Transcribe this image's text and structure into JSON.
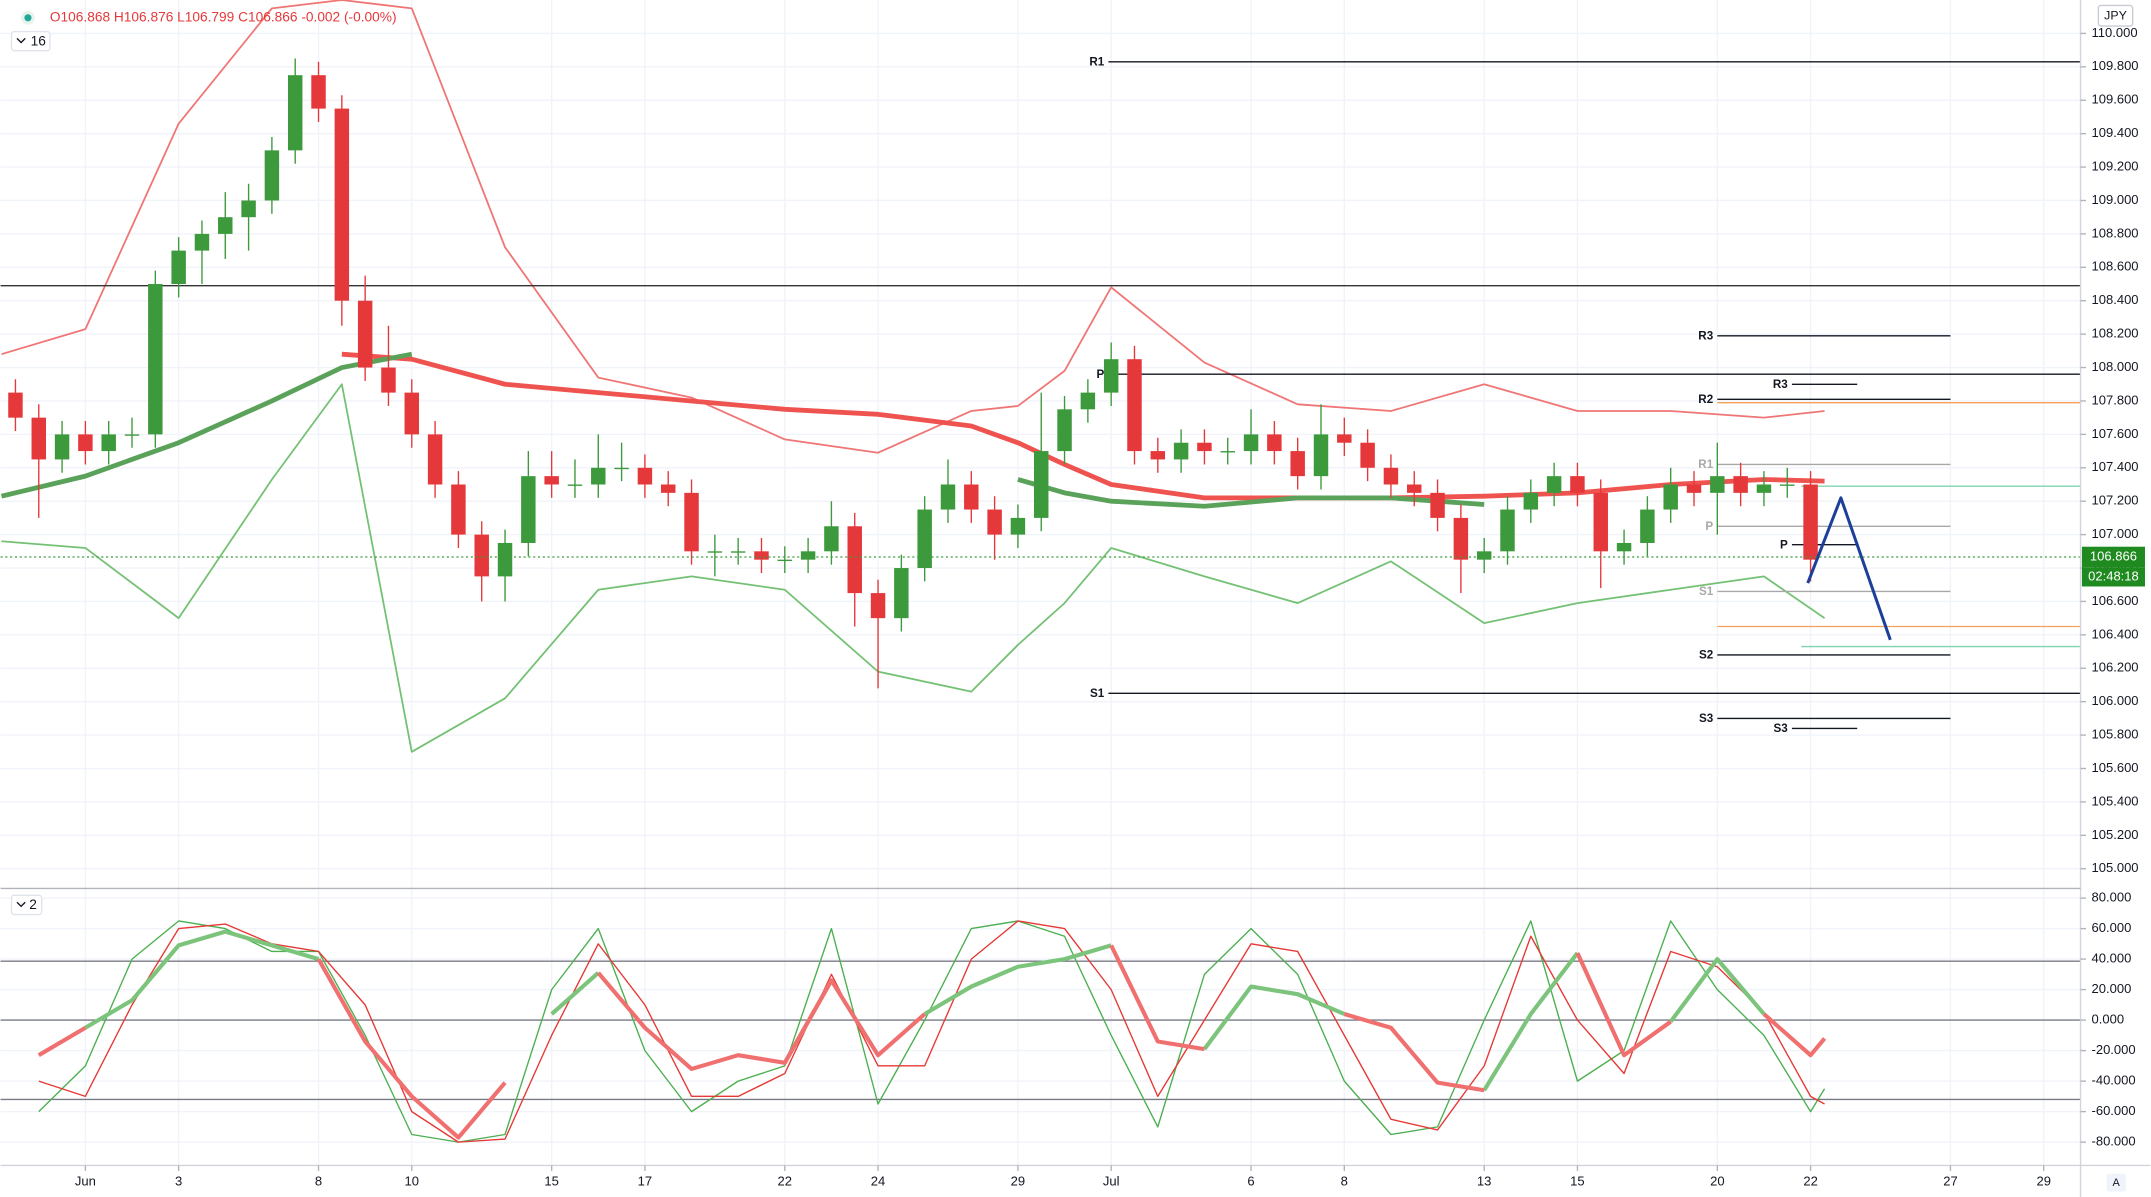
{
  "chart_data": [
    {
      "type": "candlestick",
      "ohlc_label": "O106.868 H106.876 L106.799 C106.866 -0.002 (-0.00%)",
      "indicator_count": 16,
      "currency": "JPY",
      "last_price": 106.866,
      "countdown": "02:48:18",
      "scale_mode": "A",
      "xlim": [
        -1.82,
        42.79
      ],
      "ylim": [
        104.89,
        110.2
      ],
      "grid": true,
      "xticks": [
        {
          "value": 0,
          "label": "Jun"
        },
        {
          "value": 2,
          "label": "3"
        },
        {
          "value": 5,
          "label": "8"
        },
        {
          "value": 7,
          "label": "10"
        },
        {
          "value": 10,
          "label": "15"
        },
        {
          "value": 12,
          "label": "17"
        },
        {
          "value": 15,
          "label": "22"
        },
        {
          "value": 17,
          "label": "24"
        },
        {
          "value": 20,
          "label": "29"
        },
        {
          "value": 22,
          "label": "Jul"
        },
        {
          "value": 25,
          "label": "6"
        },
        {
          "value": 27,
          "label": "8"
        },
        {
          "value": 30,
          "label": "13"
        },
        {
          "value": 32,
          "label": "15"
        },
        {
          "value": 35,
          "label": "20"
        },
        {
          "value": 37,
          "label": "22"
        },
        {
          "value": 40,
          "label": "27"
        },
        {
          "value": 42,
          "label": "29"
        }
      ],
      "yticks": [
        {
          "value": 105,
          "label": "105.000"
        },
        {
          "value": 105.2,
          "label": "105.200"
        },
        {
          "value": 105.4,
          "label": "105.400"
        },
        {
          "value": 105.6,
          "label": "105.600"
        },
        {
          "value": 105.8,
          "label": "105.800"
        },
        {
          "value": 106,
          "label": "106.000"
        },
        {
          "value": 106.2,
          "label": "106.200"
        },
        {
          "value": 106.4,
          "label": "106.400"
        },
        {
          "value": 106.6,
          "label": "106.600"
        },
        {
          "value": 106.8,
          "label": "106.800"
        },
        {
          "value": 107,
          "label": "107.000"
        },
        {
          "value": 107.2,
          "label": "107.200"
        },
        {
          "value": 107.4,
          "label": "107.400"
        },
        {
          "value": 107.6,
          "label": "107.600"
        },
        {
          "value": 107.8,
          "label": "107.800"
        },
        {
          "value": 108,
          "label": "108.000"
        },
        {
          "value": 108.2,
          "label": "108.200"
        },
        {
          "value": 108.4,
          "label": "108.400"
        },
        {
          "value": 108.6,
          "label": "108.600"
        },
        {
          "value": 108.8,
          "label": "108.800"
        },
        {
          "value": 109,
          "label": "109.000"
        },
        {
          "value": 109.2,
          "label": "109.200"
        },
        {
          "value": 109.4,
          "label": "109.400"
        },
        {
          "value": 109.6,
          "label": "109.600"
        },
        {
          "value": 109.8,
          "label": "109.800"
        },
        {
          "value": 110,
          "label": "110.000"
        }
      ],
      "up_color": "#3c9a3c",
      "down_color": "#e5383b",
      "x": [
        -1.5,
        -1,
        -0.5,
        0,
        0.5,
        1,
        1.5,
        2,
        2.5,
        3,
        3.5,
        4,
        4.5,
        5,
        5.5,
        6,
        6.5,
        7,
        7.5,
        8,
        8.5,
        9,
        9.5,
        10,
        10.5,
        11,
        11.5,
        12,
        12.5,
        13,
        13.5,
        14,
        14.5,
        15,
        15.5,
        16,
        16.5,
        17,
        17.5,
        18,
        18.5,
        19,
        19.5,
        20,
        20.5,
        21,
        21.5,
        22,
        22.5,
        23,
        23.5,
        24,
        24.5,
        25,
        25.5,
        26,
        26.5,
        27,
        27.5,
        28,
        28.5,
        29,
        29.5,
        30,
        30.5,
        31,
        31.5,
        32,
        32.5,
        33,
        33.5,
        34,
        34.5,
        35,
        35.5,
        36,
        36.5,
        37
      ],
      "open": [
        107.85,
        107.7,
        107.45,
        107.6,
        107.5,
        107.6,
        107.6,
        108.5,
        108.7,
        108.8,
        108.9,
        109,
        109.3,
        109.75,
        109.55,
        108.4,
        108,
        107.85,
        107.6,
        107.3,
        107,
        106.75,
        106.95,
        107.35,
        107.3,
        107.3,
        107.4,
        107.4,
        107.3,
        107.25,
        106.9,
        106.9,
        106.9,
        106.85,
        106.85,
        106.9,
        107.05,
        106.65,
        106.5,
        106.8,
        107.15,
        107.3,
        107.15,
        107,
        107.1,
        107.5,
        107.75,
        107.85,
        108.05,
        107.5,
        107.45,
        107.55,
        107.5,
        107.5,
        107.6,
        107.5,
        107.35,
        107.6,
        107.55,
        107.4,
        107.3,
        107.25,
        107.1,
        106.85,
        106.9,
        107.15,
        107.25,
        107.35,
        107.25,
        106.9,
        106.95,
        107.15,
        107.3,
        107.25,
        107.35,
        107.25,
        107.3,
        107.3
      ],
      "high": [
        107.93,
        107.78,
        107.68,
        107.68,
        107.68,
        107.7,
        108.58,
        108.78,
        108.88,
        109.05,
        109.1,
        109.38,
        109.85,
        109.83,
        109.63,
        108.55,
        108.25,
        107.93,
        107.68,
        107.38,
        107.08,
        107.03,
        107.5,
        107.5,
        107.45,
        107.6,
        107.55,
        107.48,
        107.38,
        107.33,
        107,
        106.98,
        106.98,
        106.93,
        106.98,
        107.2,
        107.13,
        106.73,
        106.88,
        107.23,
        107.45,
        107.38,
        107.23,
        107.18,
        107.85,
        107.83,
        107.93,
        108.15,
        108.13,
        107.58,
        107.63,
        107.63,
        107.58,
        107.75,
        107.68,
        107.58,
        107.78,
        107.7,
        107.63,
        107.48,
        107.38,
        107.33,
        107.18,
        106.98,
        107.23,
        107.33,
        107.43,
        107.43,
        107.33,
        107.03,
        107.23,
        107.4,
        107.38,
        107.55,
        107.43,
        107.38,
        107.4,
        107.38
      ],
      "low": [
        107.62,
        107.1,
        107.37,
        107.42,
        107.42,
        107.52,
        107.52,
        108.42,
        108.5,
        108.65,
        108.7,
        108.92,
        109.22,
        109.47,
        108.25,
        107.92,
        107.77,
        107.52,
        107.22,
        106.92,
        106.6,
        106.6,
        106.87,
        107.22,
        107.22,
        107.22,
        107.32,
        107.22,
        107.17,
        106.82,
        106.75,
        106.82,
        106.77,
        106.77,
        106.77,
        106.82,
        106.45,
        106.08,
        106.42,
        106.72,
        107.07,
        107.07,
        106.85,
        106.92,
        107.02,
        107.42,
        107.67,
        107.77,
        107.42,
        107.37,
        107.37,
        107.42,
        107.42,
        107.42,
        107.42,
        107.27,
        107.27,
        107.47,
        107.32,
        107.22,
        107.17,
        107.02,
        106.65,
        106.77,
        106.82,
        107.07,
        107.17,
        107.17,
        106.68,
        106.82,
        106.87,
        107.07,
        107.17,
        107,
        107.17,
        107.17,
        107.22,
        106.72
      ],
      "close": [
        107.7,
        107.45,
        107.6,
        107.5,
        107.6,
        107.6,
        108.5,
        108.7,
        108.8,
        108.9,
        109,
        109.3,
        109.75,
        109.55,
        108.4,
        108,
        107.85,
        107.6,
        107.3,
        107,
        106.75,
        106.95,
        107.35,
        107.3,
        107.3,
        107.4,
        107.4,
        107.3,
        107.25,
        106.9,
        106.9,
        106.9,
        106.85,
        106.85,
        106.9,
        107.05,
        106.65,
        106.5,
        106.8,
        107.15,
        107.3,
        107.15,
        107,
        107.1,
        107.5,
        107.75,
        107.85,
        108.05,
        107.5,
        107.45,
        107.55,
        107.5,
        107.5,
        107.6,
        107.5,
        107.35,
        107.6,
        107.55,
        107.4,
        107.3,
        107.25,
        107.1,
        106.85,
        106.9,
        107.15,
        107.25,
        107.35,
        107.25,
        106.9,
        106.95,
        107.15,
        107.3,
        107.25,
        107.35,
        107.25,
        107.3,
        107.3,
        106.85
      ],
      "overlay_x": [
        -1.8,
        0,
        2,
        4,
        5.5,
        7,
        9,
        11,
        13,
        15,
        17,
        19,
        20,
        21,
        22,
        24,
        26,
        28,
        30,
        32,
        34,
        36,
        37.3
      ],
      "overlays": [
        {
          "color": "#f07575",
          "width": 1.3,
          "values": [
            108.08,
            108.23,
            109.46,
            110.15,
            110.2,
            110.15,
            108.72,
            107.94,
            107.82,
            107.57,
            107.49,
            107.74,
            107.77,
            107.98,
            108.48,
            108.03,
            107.78,
            107.74,
            107.9,
            107.74,
            107.74,
            107.7,
            107.74
          ]
        },
        {
          "color": "#74c174",
          "width": 1.3,
          "values": [
            106.96,
            106.92,
            106.5,
            107.33,
            107.9,
            105.7,
            106.02,
            106.67,
            106.75,
            106.67,
            106.18,
            106.06,
            106.34,
            106.59,
            106.92,
            106.75,
            106.59,
            106.84,
            106.47,
            106.59,
            106.67,
            106.75,
            106.5
          ]
        },
        {
          "color": "#ef5350",
          "width": 3.5,
          "values": [
            null,
            null,
            null,
            null,
            108.08,
            108.05,
            107.9,
            107.85,
            107.8,
            107.75,
            107.72,
            107.65,
            107.55,
            107.42,
            107.3,
            107.22,
            107.22,
            107.22,
            107.23,
            107.25,
            107.3,
            107.33,
            107.32
          ]
        },
        {
          "color": "#5aa25a",
          "width": 3.5,
          "values": [
            107.23,
            107.35,
            107.55,
            107.8,
            108,
            108.08,
            null,
            null,
            null,
            null,
            null,
            null,
            107.33,
            107.25,
            107.2,
            107.17,
            107.22,
            107.22,
            107.18,
            null,
            null,
            null,
            null
          ]
        }
      ],
      "hlines": [
        {
          "value": 108.49,
          "x": [
            -1.82,
            42.79
          ],
          "color": "#333333"
        },
        {
          "value": 107.79,
          "x": [
            35,
            42.79
          ],
          "color": "#f5a15a"
        },
        {
          "value": 106.45,
          "x": [
            35,
            42.79
          ],
          "color": "#f5a15a"
        },
        {
          "value": 107.29,
          "x": [
            36.8,
            42.79
          ],
          "color": "#7fd3b0"
        },
        {
          "value": 106.33,
          "x": [
            36.8,
            42.79
          ],
          "color": "#7fd3b0"
        }
      ],
      "pivots": [
        {
          "label": "R1",
          "value": 109.83,
          "x": [
            21.94,
            42.79
          ],
          "color": "#131722"
        },
        {
          "label": "P",
          "value": 107.96,
          "x": [
            21.94,
            42.79
          ],
          "color": "#131722"
        },
        {
          "label": "S1",
          "value": 106.05,
          "x": [
            21.94,
            42.79
          ],
          "color": "#131722"
        },
        {
          "label": "R3",
          "value": 108.19,
          "x": [
            35,
            40
          ],
          "color": "#131722"
        },
        {
          "label": "R2",
          "value": 107.81,
          "x": [
            35,
            40
          ],
          "color": "#131722"
        },
        {
          "label": "R1",
          "value": 107.42,
          "x": [
            35,
            40
          ],
          "color": "#a8a8a8"
        },
        {
          "label": "P",
          "value": 107.05,
          "x": [
            35,
            40
          ],
          "color": "#a8a8a8"
        },
        {
          "label": "S1",
          "value": 106.66,
          "x": [
            35,
            40
          ],
          "color": "#a8a8a8"
        },
        {
          "label": "S2",
          "value": 106.28,
          "x": [
            35,
            40
          ],
          "color": "#131722"
        },
        {
          "label": "S3",
          "value": 105.9,
          "x": [
            35,
            40
          ],
          "color": "#131722"
        },
        {
          "label": "R3",
          "value": 107.9,
          "x": [
            36.6,
            38
          ],
          "color": "#131722"
        },
        {
          "label": "P",
          "value": 106.94,
          "x": [
            36.6,
            38
          ],
          "color": "#131722"
        },
        {
          "label": "S3",
          "value": 105.84,
          "x": [
            36.6,
            38
          ],
          "color": "#131722"
        }
      ],
      "forecast": {
        "color": "#1c3f9a",
        "x": [
          36.94,
          37.65,
          38.71
        ],
        "values": [
          106.71,
          107.22,
          106.37
        ]
      }
    },
    {
      "type": "line",
      "indicator_count": 2,
      "xlim": [
        -1.82,
        42.79
      ],
      "ylim": [
        -95.3,
        86.3
      ],
      "yticks": [
        {
          "value": -80,
          "label": "-80.000"
        },
        {
          "value": -60,
          "label": "-60.000"
        },
        {
          "value": -40,
          "label": "-40.000"
        },
        {
          "value": -20,
          "label": "-20.000"
        },
        {
          "value": 0,
          "label": "0.000"
        },
        {
          "value": 20,
          "label": "20.000"
        },
        {
          "value": 40,
          "label": "40.000"
        },
        {
          "value": 60,
          "label": "60.000"
        },
        {
          "value": 80,
          "label": "80.000"
        }
      ],
      "levels": [
        38.6,
        0,
        -52
      ],
      "x": [
        -1,
        0,
        1,
        2,
        3,
        4,
        5,
        6,
        7,
        8,
        9,
        10,
        11,
        12,
        13,
        14,
        15,
        16,
        17,
        18,
        19,
        20,
        21,
        22,
        23,
        24,
        25,
        26,
        27,
        28,
        29,
        30,
        31,
        32,
        33,
        34,
        35,
        36,
        37,
        37.3
      ],
      "series": [
        {
          "color": "#4caf50",
          "width": 1,
          "values": [
            -60,
            -30,
            40,
            65,
            60,
            45,
            45,
            -10,
            -75,
            -80,
            -75,
            20,
            60,
            -20,
            -60,
            -40,
            -30,
            60,
            -55,
            0,
            60,
            65,
            55,
            -10,
            -70,
            30,
            60,
            30,
            -40,
            -75,
            -70,
            0,
            65,
            -40,
            -20,
            65,
            20,
            -10,
            -60,
            -45
          ]
        },
        {
          "color": "#e53935",
          "width": 1,
          "values": [
            -40,
            -50,
            10,
            60,
            63,
            50,
            45,
            10,
            -60,
            -80,
            -78,
            -10,
            50,
            10,
            -50,
            -50,
            -35,
            30,
            -30,
            -30,
            40,
            65,
            60,
            20,
            -50,
            0,
            50,
            45,
            -10,
            -65,
            -72,
            -30,
            55,
            0,
            -35,
            45,
            35,
            5,
            -50,
            -55
          ]
        },
        {
          "color": "#7cc47c",
          "width": 3,
          "values": [
            null,
            -5,
            13,
            49,
            58,
            49,
            40,
            null,
            null,
            null,
            null,
            4,
            31,
            null,
            null,
            null,
            -28,
            26,
            null,
            4,
            22,
            35,
            40,
            49,
            null,
            -19,
            22,
            17,
            4,
            null,
            null,
            -46,
            4,
            44,
            null,
            -1,
            40,
            4,
            null,
            null
          ]
        },
        {
          "color": "#f07070",
          "width": 3,
          "values": [
            -23,
            -5,
            null,
            null,
            null,
            null,
            40,
            -14,
            -50,
            -77,
            -41,
            null,
            31,
            -5,
            -32,
            -23,
            -28,
            26,
            -23,
            4,
            null,
            null,
            null,
            49,
            -14,
            -19,
            null,
            null,
            4,
            -5,
            -41,
            -46,
            null,
            44,
            -23,
            -1,
            null,
            4,
            -23,
            -12
          ]
        }
      ]
    }
  ]
}
